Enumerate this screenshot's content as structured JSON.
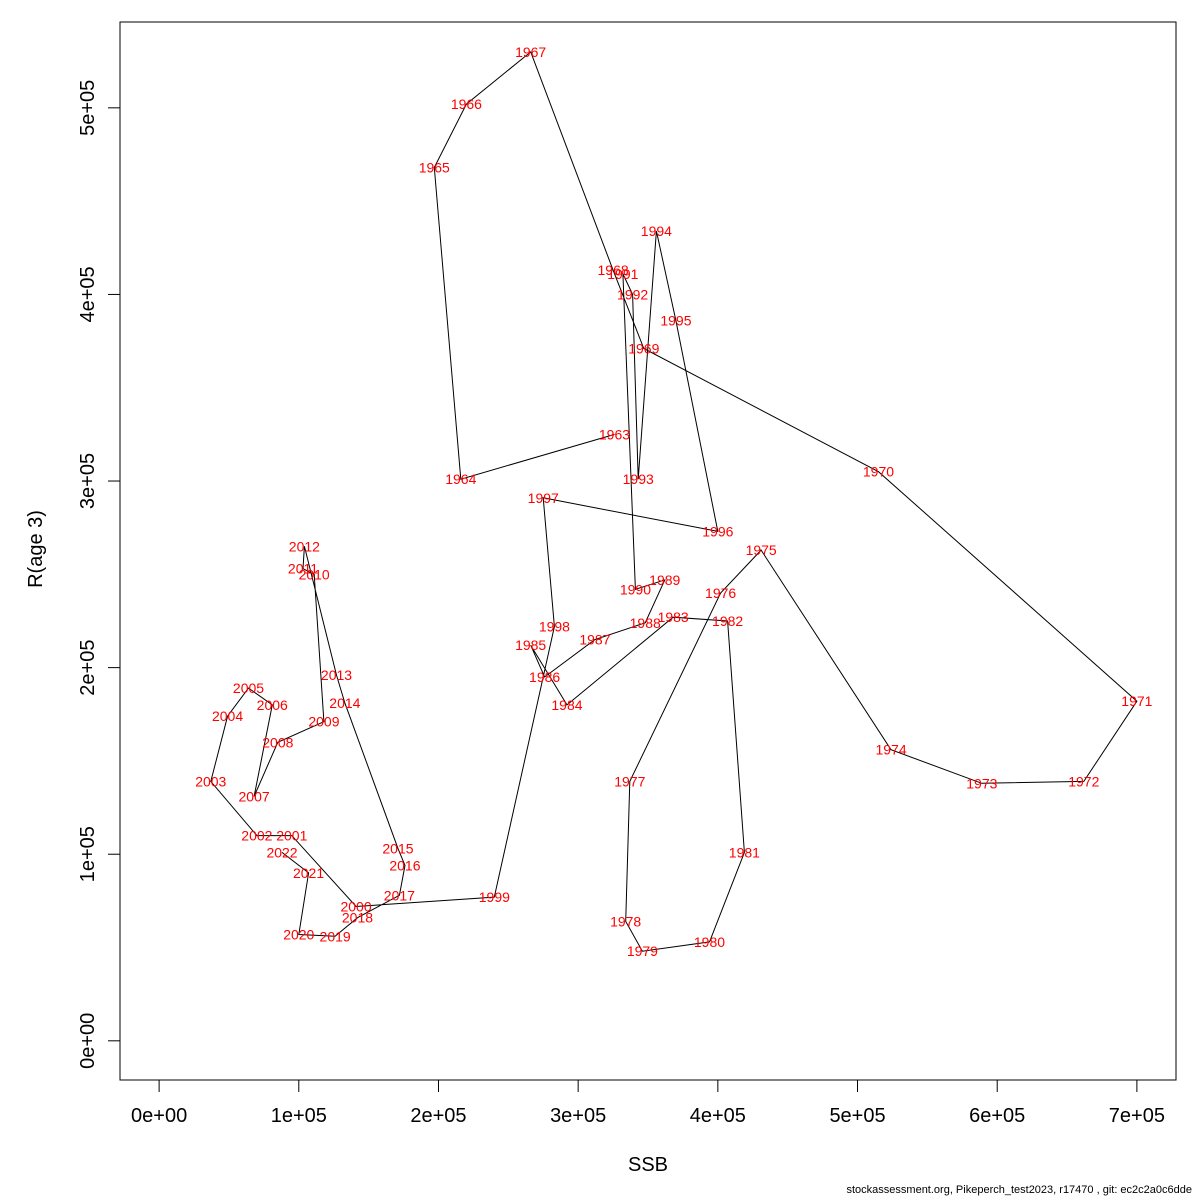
{
  "chart_data": {
    "type": "line",
    "xlabel": "SSB",
    "ylabel": "R(age 3)",
    "xlim": [
      -28000,
      728000
    ],
    "ylim": [
      -21000,
      546000
    ],
    "x_ticks": [
      {
        "value": 0,
        "label": "0e+00"
      },
      {
        "value": 100000,
        "label": "1e+05"
      },
      {
        "value": 200000,
        "label": "2e+05"
      },
      {
        "value": 300000,
        "label": "3e+05"
      },
      {
        "value": 400000,
        "label": "4e+05"
      },
      {
        "value": 500000,
        "label": "5e+05"
      },
      {
        "value": 600000,
        "label": "6e+05"
      },
      {
        "value": 700000,
        "label": "7e+05"
      }
    ],
    "y_ticks": [
      {
        "value": 0,
        "label": "0e+00"
      },
      {
        "value": 100000,
        "label": "1e+05"
      },
      {
        "value": 200000,
        "label": "2e+05"
      },
      {
        "value": 300000,
        "label": "3e+05"
      },
      {
        "value": 400000,
        "label": "4e+05"
      },
      {
        "value": 500000,
        "label": "5e+05"
      }
    ],
    "line_color": "#000000",
    "label_color": "#ff0000",
    "points": [
      {
        "year": "1963",
        "x": 326000,
        "y": 325000
      },
      {
        "year": "1964",
        "x": 216000,
        "y": 301000
      },
      {
        "year": "1965",
        "x": 197000,
        "y": 468000
      },
      {
        "year": "1966",
        "x": 220000,
        "y": 502000
      },
      {
        "year": "1967",
        "x": 266000,
        "y": 530000
      },
      {
        "year": "1968",
        "x": 325000,
        "y": 413000
      },
      {
        "year": "1969",
        "x": 347000,
        "y": 371000
      },
      {
        "year": "1970",
        "x": 515000,
        "y": 305000
      },
      {
        "year": "1971",
        "x": 700000,
        "y": 182000
      },
      {
        "year": "1972",
        "x": 662000,
        "y": 139000
      },
      {
        "year": "1973",
        "x": 589000,
        "y": 138000
      },
      {
        "year": "1974",
        "x": 524000,
        "y": 156000
      },
      {
        "year": "1975",
        "x": 431000,
        "y": 263000
      },
      {
        "year": "1976",
        "x": 402000,
        "y": 240000
      },
      {
        "year": "1977",
        "x": 337000,
        "y": 139000
      },
      {
        "year": "1978",
        "x": 334000,
        "y": 64000
      },
      {
        "year": "1979",
        "x": 346000,
        "y": 48000
      },
      {
        "year": "1980",
        "x": 394000,
        "y": 53000
      },
      {
        "year": "1981",
        "x": 419000,
        "y": 101000
      },
      {
        "year": "1982",
        "x": 407000,
        "y": 225000
      },
      {
        "year": "1983",
        "x": 368000,
        "y": 227000
      },
      {
        "year": "1984",
        "x": 292000,
        "y": 180000
      },
      {
        "year": "1985",
        "x": 266000,
        "y": 212000
      },
      {
        "year": "1986",
        "x": 276000,
        "y": 195000
      },
      {
        "year": "1987",
        "x": 312000,
        "y": 215000
      },
      {
        "year": "1988",
        "x": 348000,
        "y": 224000
      },
      {
        "year": "1989",
        "x": 362000,
        "y": 247000
      },
      {
        "year": "1990",
        "x": 341000,
        "y": 242000
      },
      {
        "year": "1991",
        "x": 332000,
        "y": 411000
      },
      {
        "year": "1992",
        "x": 339000,
        "y": 400000
      },
      {
        "year": "1993",
        "x": 343000,
        "y": 301000
      },
      {
        "year": "1994",
        "x": 356000,
        "y": 434000
      },
      {
        "year": "1995",
        "x": 370000,
        "y": 386000
      },
      {
        "year": "1996",
        "x": 400000,
        "y": 273000
      },
      {
        "year": "1997",
        "x": 275000,
        "y": 291000
      },
      {
        "year": "1998",
        "x": 283000,
        "y": 222000
      },
      {
        "year": "1999",
        "x": 240000,
        "y": 77000
      },
      {
        "year": "2000",
        "x": 141000,
        "y": 72000
      },
      {
        "year": "2001",
        "x": 95000,
        "y": 110000
      },
      {
        "year": "2002",
        "x": 70000,
        "y": 110000
      },
      {
        "year": "2003",
        "x": 37000,
        "y": 139000
      },
      {
        "year": "2004",
        "x": 49000,
        "y": 174000
      },
      {
        "year": "2005",
        "x": 64000,
        "y": 189000
      },
      {
        "year": "2006",
        "x": 81000,
        "y": 180000
      },
      {
        "year": "2007",
        "x": 68000,
        "y": 131000
      },
      {
        "year": "2008",
        "x": 85000,
        "y": 160000
      },
      {
        "year": "2009",
        "x": 118000,
        "y": 171000
      },
      {
        "year": "2010",
        "x": 111000,
        "y": 250000
      },
      {
        "year": "2011",
        "x": 103000,
        "y": 253000
      },
      {
        "year": "2012",
        "x": 104000,
        "y": 265000
      },
      {
        "year": "2013",
        "x": 127000,
        "y": 196000
      },
      {
        "year": "2014",
        "x": 133000,
        "y": 181000
      },
      {
        "year": "2015",
        "x": 171000,
        "y": 103000
      },
      {
        "year": "2016",
        "x": 176000,
        "y": 94000
      },
      {
        "year": "2017",
        "x": 172000,
        "y": 78000
      },
      {
        "year": "2018",
        "x": 142000,
        "y": 66000
      },
      {
        "year": "2019",
        "x": 126000,
        "y": 56000
      },
      {
        "year": "2020",
        "x": 100000,
        "y": 57000
      },
      {
        "year": "2021",
        "x": 107000,
        "y": 90000
      },
      {
        "year": "2022",
        "x": 88000,
        "y": 101000
      }
    ]
  },
  "footer": "stockassessment.org, Pikeperch_test2023, r17470 , git: ec2c2a0c6dde"
}
